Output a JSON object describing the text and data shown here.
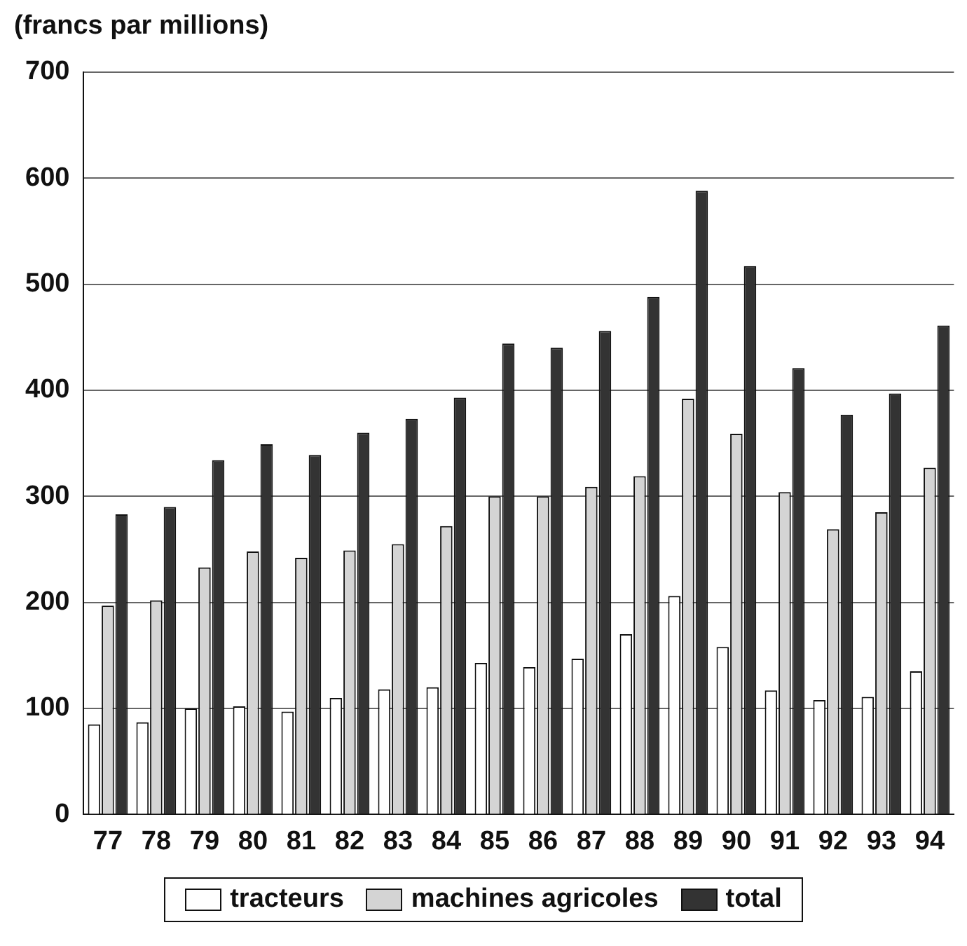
{
  "chart_data": {
    "type": "bar",
    "ylabel": "(francs par millions)",
    "categories": [
      "77",
      "78",
      "79",
      "80",
      "81",
      "82",
      "83",
      "84",
      "85",
      "86",
      "87",
      "88",
      "89",
      "90",
      "91",
      "92",
      "93",
      "94"
    ],
    "series": [
      {
        "name": "tracteurs",
        "color": "#ffffff",
        "values": [
          85,
          87,
          100,
          102,
          97,
          110,
          118,
          120,
          143,
          139,
          147,
          170,
          206,
          158,
          117,
          108,
          111,
          135
        ]
      },
      {
        "name": "machines agricoles",
        "color": "#d4d4d4",
        "values": [
          197,
          202,
          233,
          248,
          242,
          249,
          255,
          272,
          300,
          300,
          309,
          319,
          392,
          359,
          304,
          269,
          285,
          327
        ]
      },
      {
        "name": "total",
        "color": "#333333",
        "values": [
          283,
          290,
          334,
          349,
          339,
          360,
          373,
          393,
          444,
          440,
          456,
          488,
          588,
          517,
          421,
          377,
          397,
          461
        ]
      }
    ],
    "ylim": [
      0,
      700
    ],
    "yticks": [
      0,
      100,
      200,
      300,
      400,
      500,
      600,
      700
    ],
    "grid": "y",
    "legend": "bottom"
  }
}
